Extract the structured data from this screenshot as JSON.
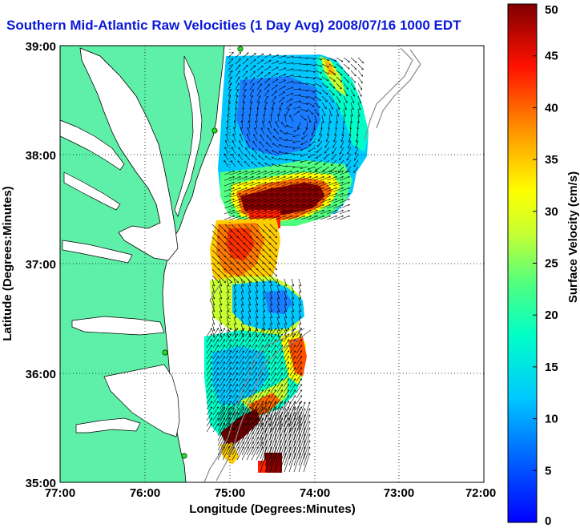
{
  "title": "Southern Mid-Atlantic Raw Velocities (1 Day Avg) 2008/07/16 1000 EDT",
  "axes": {
    "xlabel": "Longitude (Degrees:Minutes)",
    "ylabel": "Latitude (Degrees:Minutes)",
    "x_ticks": [
      "77:00",
      "76:00",
      "75:00",
      "74:00",
      "73:00",
      "72:00"
    ],
    "y_ticks": [
      "39:00",
      "38:00",
      "37:00",
      "36:00",
      "35:00"
    ],
    "xlim": [
      -77,
      -72
    ],
    "ylim": [
      35,
      39
    ],
    "grid": "dotted"
  },
  "colorbar": {
    "label": "Surface Velocity (cm/s)",
    "ticks": [
      "0",
      "5",
      "10",
      "15",
      "20",
      "25",
      "30",
      "35",
      "40",
      "45",
      "50"
    ],
    "range": [
      0,
      50
    ],
    "colormap": "jet"
  },
  "colors": {
    "land": "#5ef0a8",
    "title": "#0a18d8",
    "bathymetry": "#8a8a8a",
    "station": "#22dd22"
  }
}
